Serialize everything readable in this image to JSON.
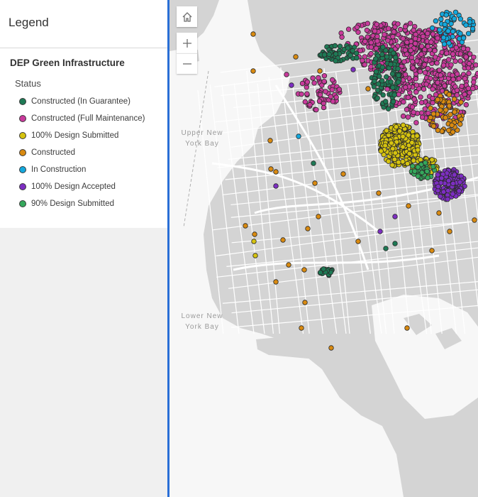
{
  "legend": {
    "title": "Legend",
    "layer_title": "DEP Green Infrastructure",
    "field_title": "Status",
    "items": [
      {
        "label": "Constructed (In Guarantee)",
        "color": "#1e7a55"
      },
      {
        "label": "Constructed (Full Maintenance)",
        "color": "#c93a9c"
      },
      {
        "label": "100% Design Submitted",
        "color": "#d6c30f"
      },
      {
        "label": "Constructed",
        "color": "#d98a10"
      },
      {
        "label": "In Construction",
        "color": "#14a8dd"
      },
      {
        "label": "100% Design Accepted",
        "color": "#7d2ec2"
      },
      {
        "label": "90% Design Submitted",
        "color": "#35a85c"
      }
    ]
  },
  "map": {
    "controls": {
      "home_icon": "home-icon",
      "zoom_in_icon": "plus-icon",
      "zoom_out_icon": "minus-icon"
    },
    "water_labels": {
      "upper_bay": "Upper New\nYork Bay",
      "lower_bay": "Lower New\nYork Bay"
    },
    "colors": {
      "water": "#f7f7f7",
      "land": "#d4d4d4",
      "roads": "#ffffff"
    }
  }
}
